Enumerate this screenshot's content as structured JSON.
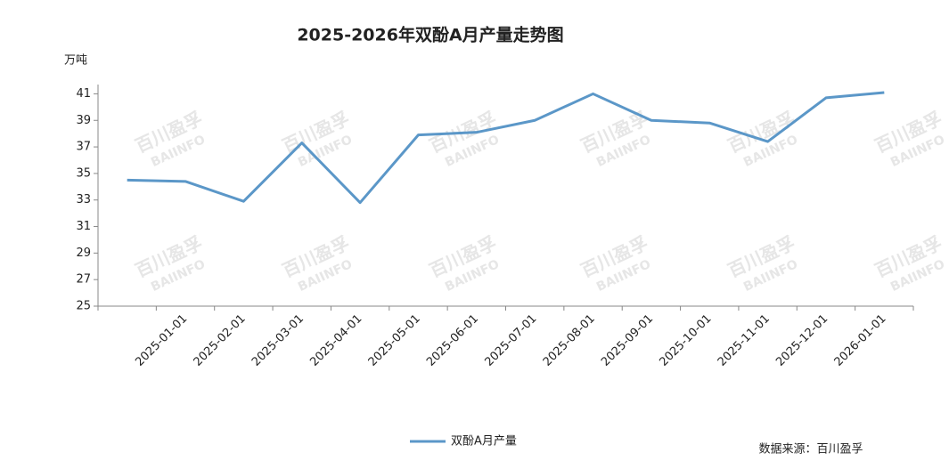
{
  "chart_data": {
    "type": "line",
    "title": "2025-2026年双酚A月产量走势图",
    "y_label": "万吨",
    "source": "数据来源：百川盈孚",
    "watermark": [
      "百川盈孚",
      "BAIINFO"
    ],
    "categories": [
      null,
      "2025-01-01",
      "2025-02-01",
      "2025-03-01",
      "2025-04-01",
      "2025-05-01",
      "2025-06-01",
      "2025-07-01",
      "2025-08-01",
      "2025-09-01",
      "2025-10-01",
      "2025-11-01",
      "2025-12-01",
      "2026-01-01"
    ],
    "series": [
      {
        "name": "双酚A月产量",
        "color": "#5b97c8",
        "values": [
          34.5,
          34.4,
          32.9,
          37.3,
          32.8,
          37.9,
          38.1,
          39.0,
          41.0,
          39.0,
          38.8,
          37.4,
          40.7,
          41.1
        ]
      }
    ],
    "ylim": [
      25,
      41.7
    ],
    "yticks": [
      25,
      27,
      29,
      31,
      33,
      35,
      37,
      39,
      41
    ],
    "grid": false
  }
}
